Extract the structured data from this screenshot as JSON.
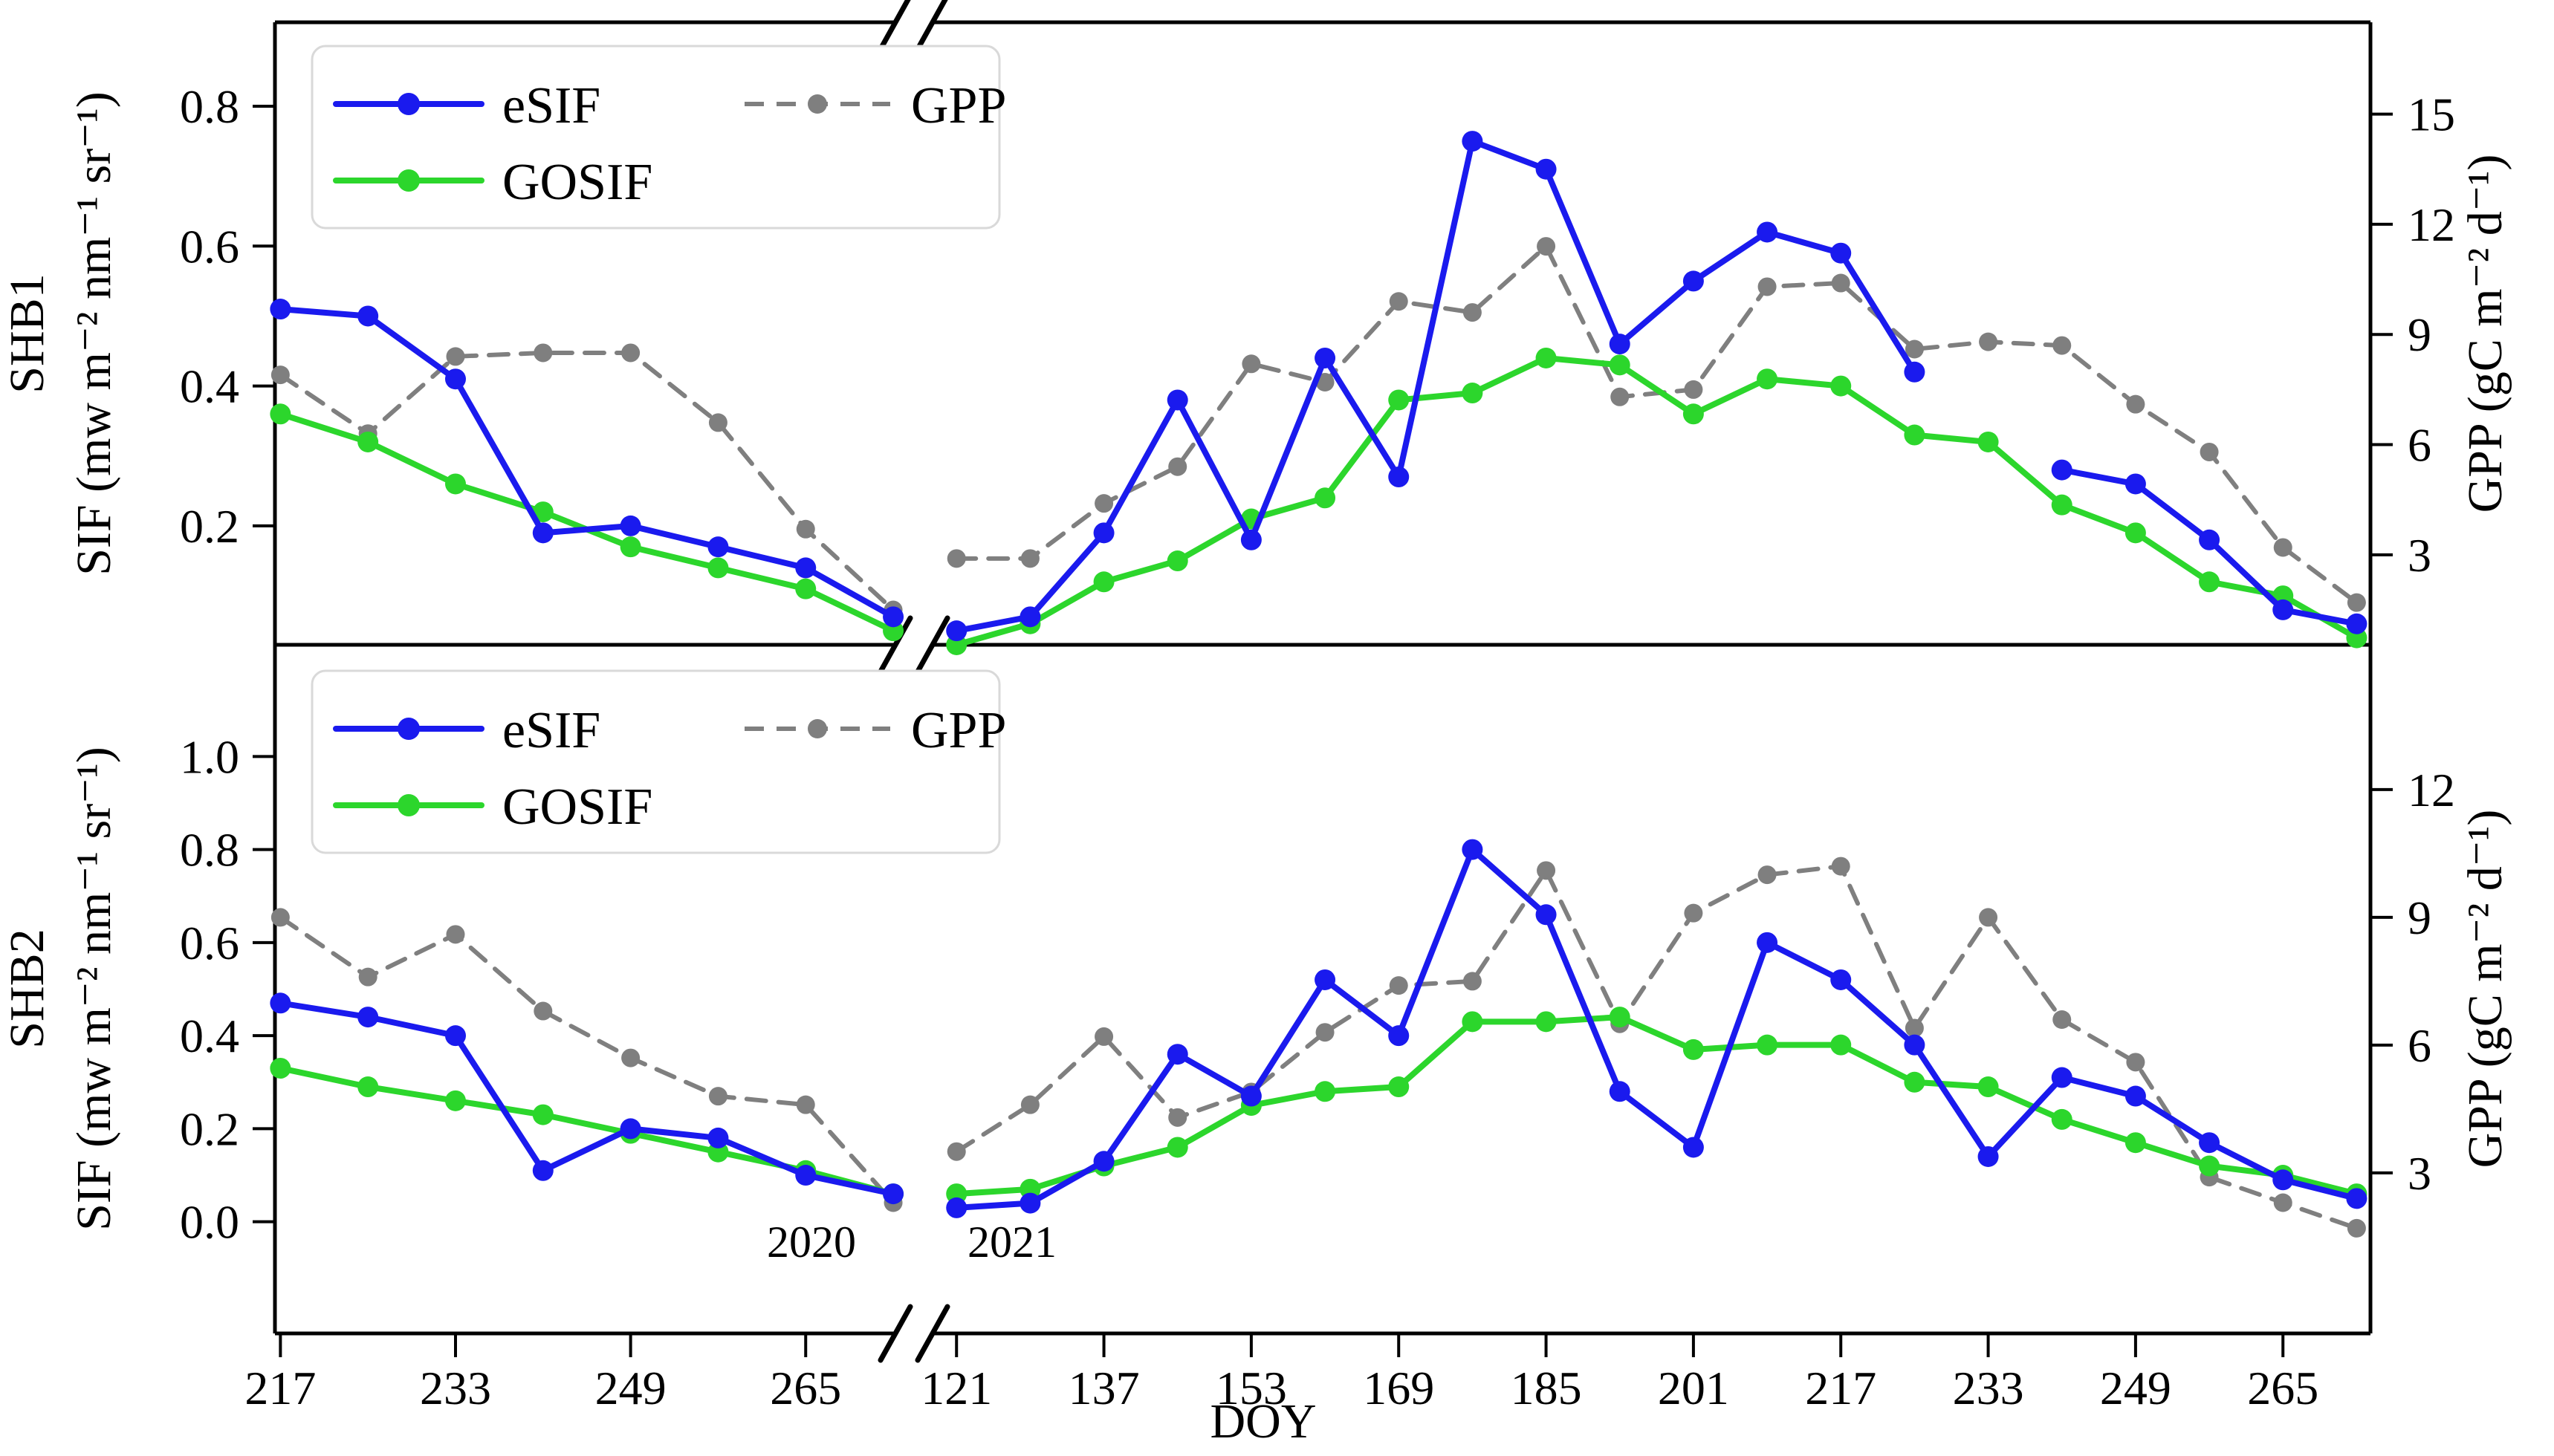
{
  "figure": {
    "xlabel": "DOY",
    "year_labels": [
      "2020",
      "2021"
    ],
    "legend": {
      "esif": "eSIF",
      "gosif": "GOSIF",
      "gpp": "GPP"
    },
    "colors": {
      "esif": "#1a1aee",
      "gosif": "#2cd62c",
      "gpp": "#7f7f7f",
      "spine": "#000000",
      "legend_border": "#d9d9d9",
      "background": "#ffffff"
    }
  },
  "chart_data": [
    {
      "type": "line",
      "panel_label": "SHB1",
      "left_axis": {
        "label": "SIF (mw m⁻² nm⁻¹ sr⁻¹)",
        "ticks": [
          "0.2",
          "0.4",
          "0.6",
          "0.8"
        ],
        "range": [
          0.03,
          0.92
        ]
      },
      "right_axis": {
        "label": "GPP (gC m⁻² d⁻¹)",
        "ticks": [
          "3",
          "6",
          "9",
          "12",
          "15"
        ],
        "range": [
          0.55,
          17.5
        ]
      },
      "legend_entries": [
        "eSIF",
        "GOSIF",
        "GPP"
      ],
      "segments": [
        {
          "year": "2020",
          "xticks": [
            217,
            233,
            249,
            265
          ],
          "xrange": [
            216.5,
            273.2
          ],
          "doy": [
            217,
            225,
            233,
            241,
            249,
            257,
            265,
            273
          ],
          "eSIF": [
            0.51,
            0.5,
            0.41,
            0.19,
            0.2,
            0.17,
            0.14,
            0.07
          ],
          "GOSIF": [
            0.36,
            0.32,
            0.26,
            0.22,
            0.17,
            0.14,
            0.11,
            0.05
          ],
          "GPP": [
            7.9,
            6.3,
            8.4,
            8.5,
            8.5,
            6.6,
            3.7,
            1.5
          ]
        },
        {
          "year": "2021",
          "xticks": [
            121,
            137,
            153,
            169,
            185,
            201,
            217,
            233,
            249,
            265
          ],
          "xrange": [
            118.4,
            274.5
          ],
          "doy": [
            121,
            129,
            137,
            145,
            153,
            161,
            169,
            177,
            185,
            193,
            201,
            209,
            217,
            225,
            233,
            241,
            249,
            257,
            265,
            273
          ],
          "eSIF": [
            0.05,
            0.07,
            0.19,
            0.38,
            0.18,
            0.44,
            0.27,
            0.75,
            0.71,
            0.46,
            0.55,
            0.62,
            0.59,
            0.42,
            null,
            0.28,
            0.26,
            0.18,
            0.08,
            0.06
          ],
          "GOSIF": [
            0.03,
            0.06,
            0.12,
            0.15,
            0.21,
            0.24,
            0.38,
            0.39,
            0.44,
            0.43,
            0.36,
            0.41,
            0.4,
            0.33,
            0.32,
            0.23,
            0.19,
            0.12,
            0.1,
            0.04
          ],
          "GPP": [
            2.9,
            2.9,
            4.4,
            5.4,
            8.2,
            7.7,
            9.9,
            9.6,
            11.4,
            7.3,
            7.5,
            10.3,
            10.4,
            8.6,
            8.8,
            8.7,
            7.1,
            5.8,
            3.2,
            1.7
          ]
        }
      ]
    },
    {
      "type": "line",
      "panel_label": "SHB2",
      "left_axis": {
        "label": "SIF (mw m⁻² nm⁻¹ sr⁻¹)",
        "ticks": [
          "0.0",
          "0.2",
          "0.4",
          "0.6",
          "0.8",
          "1.0"
        ],
        "range": [
          -0.24,
          1.24
        ]
      },
      "right_axis": {
        "label": "GPP (gC m⁻² d⁻¹)",
        "ticks": [
          "3",
          "6",
          "9",
          "12"
        ],
        "range": [
          -0.77,
          15.4
        ]
      },
      "legend_entries": [
        "eSIF",
        "GOSIF",
        "GPP"
      ],
      "segments": [
        {
          "year": "2020",
          "xticks": [
            217,
            233,
            249,
            265
          ],
          "xrange": [
            216.5,
            273.2
          ],
          "doy": [
            217,
            225,
            233,
            241,
            249,
            257,
            265,
            273
          ],
          "eSIF": [
            0.47,
            0.44,
            0.4,
            0.11,
            0.2,
            0.18,
            0.1,
            0.06
          ],
          "GOSIF": [
            0.33,
            0.29,
            0.26,
            0.23,
            0.19,
            0.15,
            0.11,
            0.06
          ],
          "GPP": [
            9.0,
            7.6,
            8.6,
            6.8,
            5.7,
            4.8,
            4.6,
            2.3
          ]
        },
        {
          "year": "2021",
          "xticks": [
            121,
            137,
            153,
            169,
            185,
            201,
            217,
            233,
            249,
            265
          ],
          "xrange": [
            118.4,
            274.5
          ],
          "doy": [
            121,
            129,
            137,
            145,
            153,
            161,
            169,
            177,
            185,
            193,
            201,
            209,
            217,
            225,
            233,
            241,
            249,
            257,
            265,
            273
          ],
          "eSIF": [
            0.03,
            0.04,
            0.13,
            0.36,
            0.27,
            0.52,
            0.4,
            0.8,
            0.66,
            0.28,
            0.16,
            0.6,
            0.52,
            0.38,
            0.14,
            0.31,
            0.27,
            0.17,
            0.09,
            0.05
          ],
          "GOSIF": [
            0.06,
            0.07,
            0.12,
            0.16,
            0.25,
            0.28,
            0.29,
            0.43,
            0.43,
            0.44,
            0.37,
            0.38,
            0.38,
            0.3,
            0.29,
            0.22,
            0.17,
            0.12,
            0.1,
            0.06
          ],
          "GPP": [
            3.5,
            4.6,
            6.2,
            4.3,
            4.9,
            6.3,
            7.4,
            7.5,
            10.1,
            6.5,
            9.1,
            10.0,
            10.2,
            6.4,
            9.0,
            6.6,
            5.6,
            2.9,
            2.3,
            1.7
          ]
        }
      ]
    }
  ]
}
